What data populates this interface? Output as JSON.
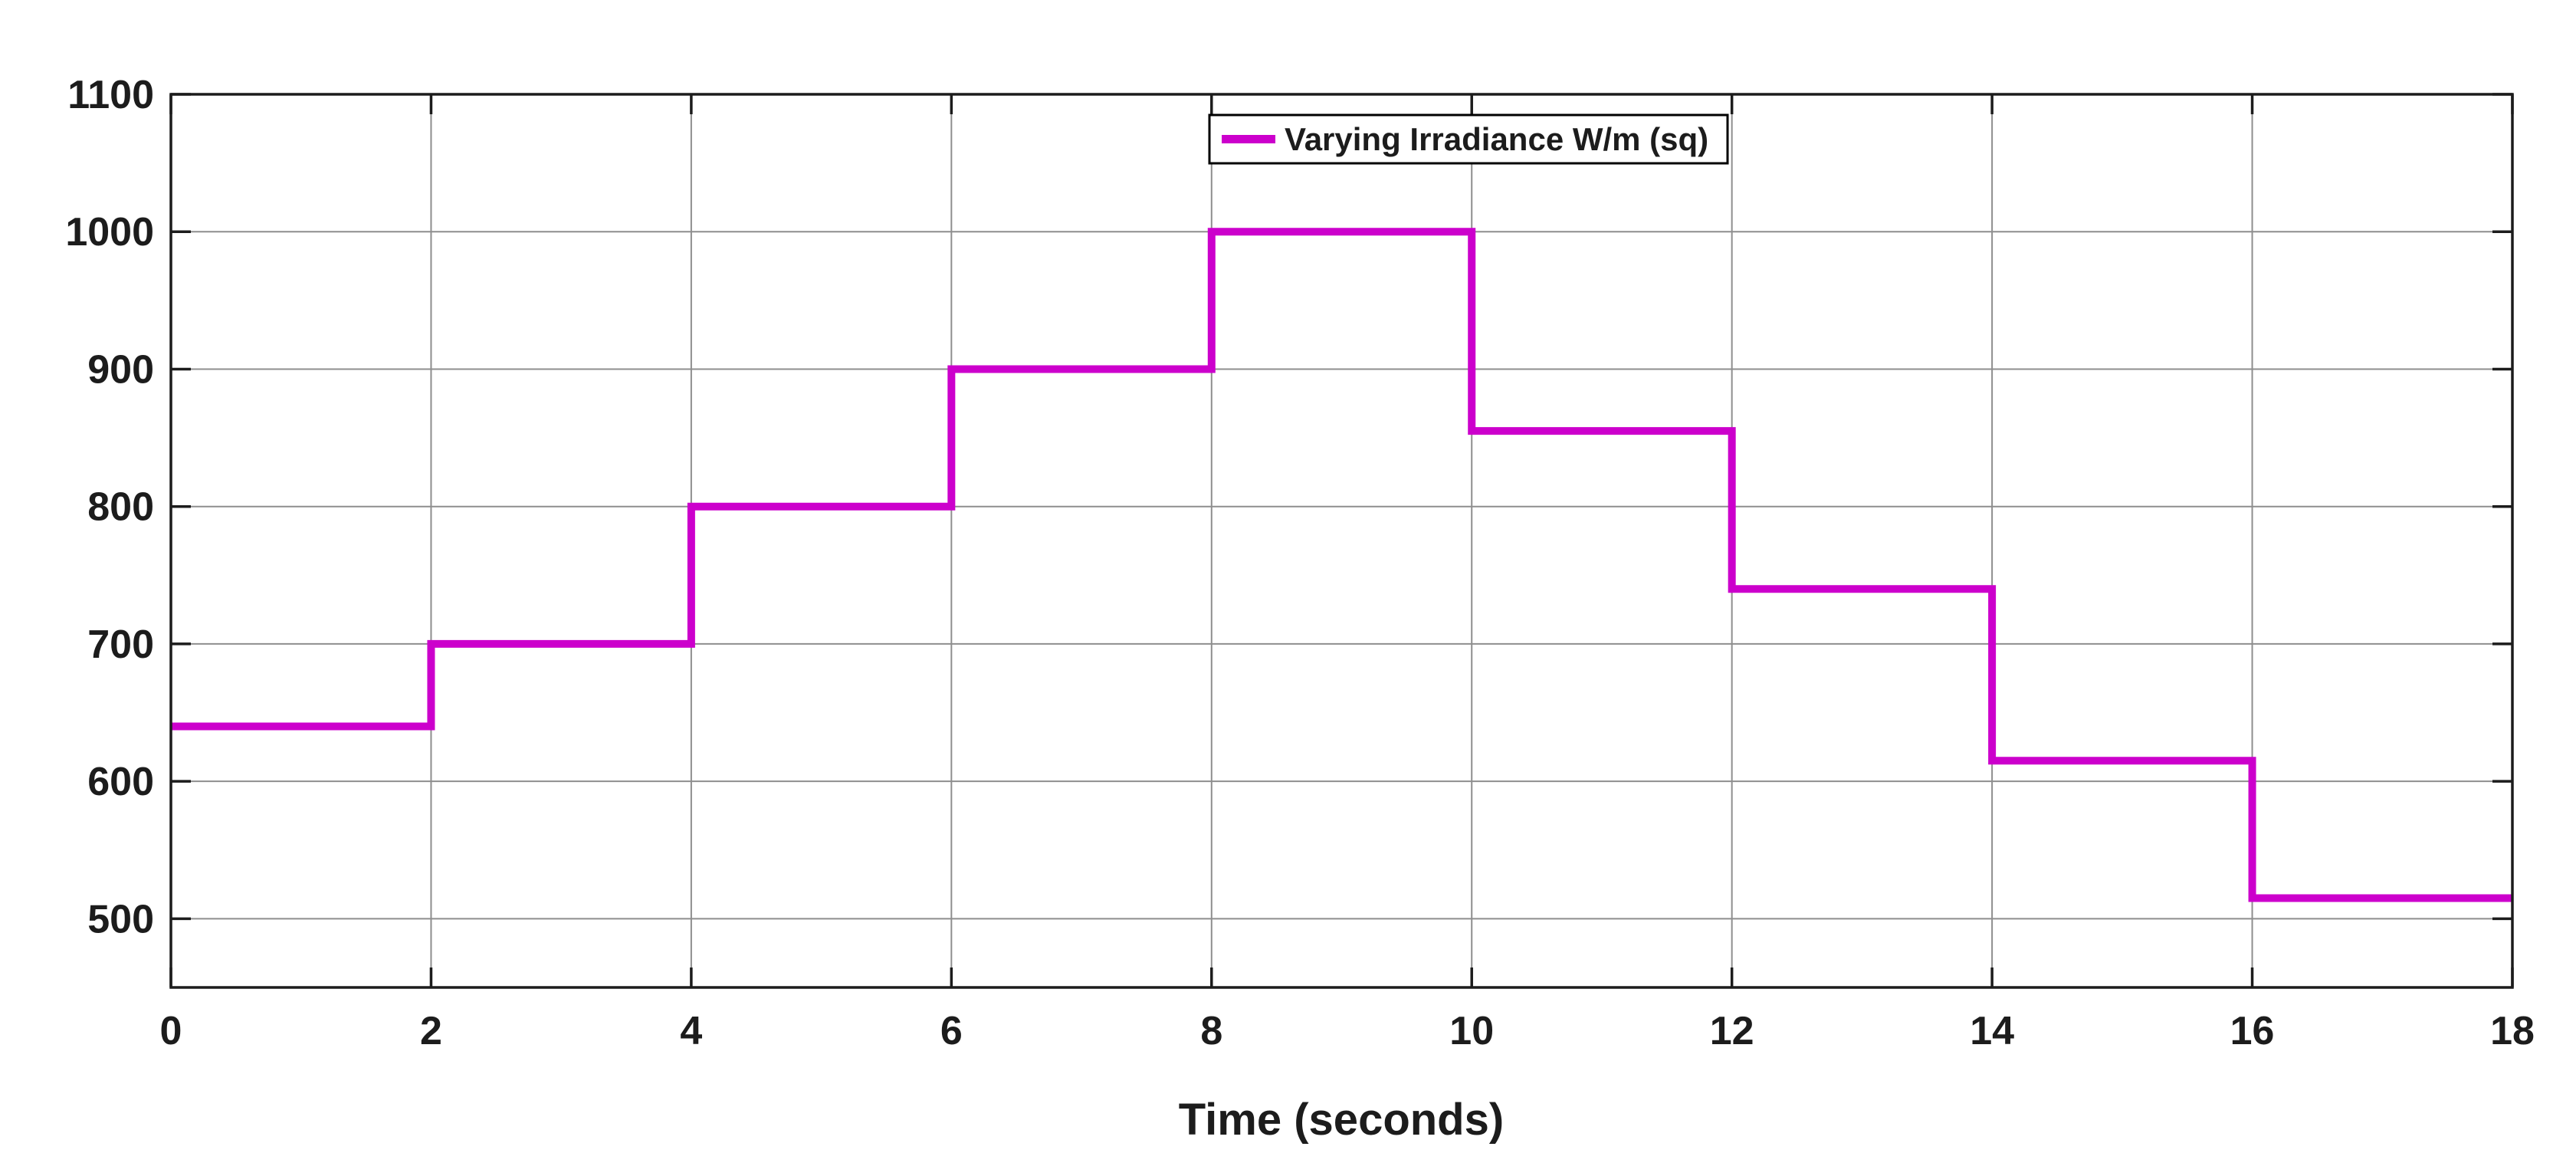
{
  "chart_data": {
    "type": "line",
    "subtype": "step",
    "title": "",
    "xlabel": "Time (seconds)",
    "ylabel": "",
    "xlim": [
      0,
      18
    ],
    "ylim": [
      450,
      1100
    ],
    "x_ticks": [
      0,
      2,
      4,
      6,
      8,
      10,
      12,
      14,
      16,
      18
    ],
    "y_ticks": [
      500,
      600,
      700,
      800,
      900,
      1000,
      1100
    ],
    "grid": "on",
    "box": "on",
    "tick_direction": "in",
    "legend": {
      "position": "north",
      "entries": [
        "Varying Irradiance W/m (sq)"
      ]
    },
    "series": [
      {
        "name": "Varying Irradiance W/m (sq)",
        "color": "#CC00CC",
        "line_width": 10,
        "step_edges_x": [
          0,
          2,
          4,
          6,
          8,
          10,
          12,
          14,
          16,
          18
        ],
        "values": [
          640,
          700,
          800,
          900,
          1000,
          855,
          740,
          615,
          515
        ]
      }
    ]
  },
  "colors": {
    "line": "#CC00CC",
    "grid": "#8E8E8E",
    "axis": "#1C1C1C",
    "background": "#FFFFFF"
  }
}
